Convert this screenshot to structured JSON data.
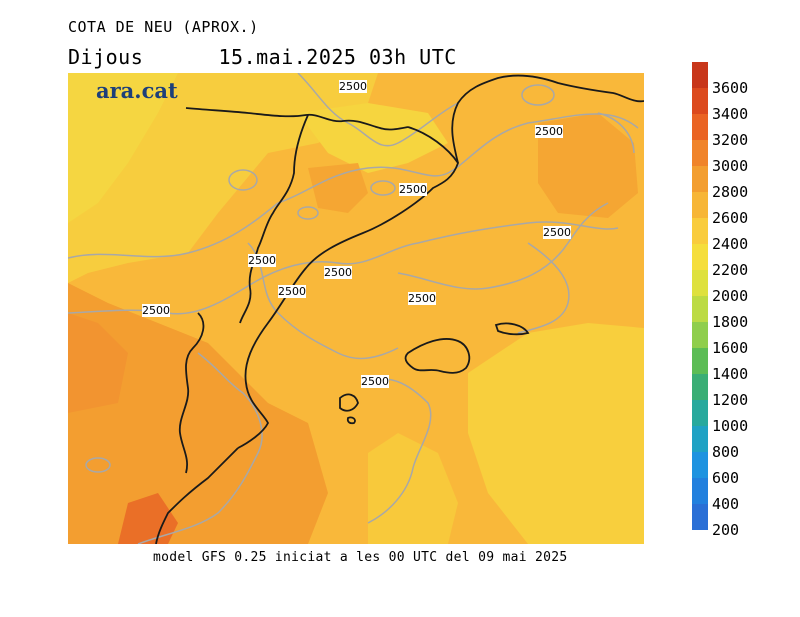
{
  "header": {
    "title": "COTA DE NEU (APROX.)",
    "day": "Dijous",
    "datetime": "15.mai.2025 03h UTC"
  },
  "logo": {
    "text": "ara.cat"
  },
  "footer": {
    "model_text": "model GFS 0.25 iniciat a les 00 UTC del 09 mai 2025"
  },
  "map": {
    "contour_value": "2500",
    "contour_labels": [
      "2500",
      "2500",
      "2500",
      "2500",
      "2500",
      "2500",
      "2500",
      "2500",
      "2500",
      "2500"
    ]
  },
  "legend": {
    "levels": [
      {
        "label": "3600",
        "color": "#c8361a"
      },
      {
        "label": "3400",
        "color": "#dc4a1e"
      },
      {
        "label": "3200",
        "color": "#ea6424"
      },
      {
        "label": "3000",
        "color": "#f0842a"
      },
      {
        "label": "2800",
        "color": "#f39e30"
      },
      {
        "label": "2600",
        "color": "#f7b637"
      },
      {
        "label": "2400",
        "color": "#f9cc3d"
      },
      {
        "label": "2200",
        "color": "#f5de3c"
      },
      {
        "label": "2000",
        "color": "#dee13e"
      },
      {
        "label": "1800",
        "color": "#bcdb44"
      },
      {
        "label": "1600",
        "color": "#8fce4c"
      },
      {
        "label": "1400",
        "color": "#5cbd55"
      },
      {
        "label": "1200",
        "color": "#3aae75"
      },
      {
        "label": "1000",
        "color": "#27a99d"
      },
      {
        "label": "800",
        "color": "#1fa2c4"
      },
      {
        "label": "600",
        "color": "#1e93e0"
      },
      {
        "label": "400",
        "color": "#2280de"
      },
      {
        "label": "200",
        "color": "#2a6fd6"
      }
    ]
  }
}
